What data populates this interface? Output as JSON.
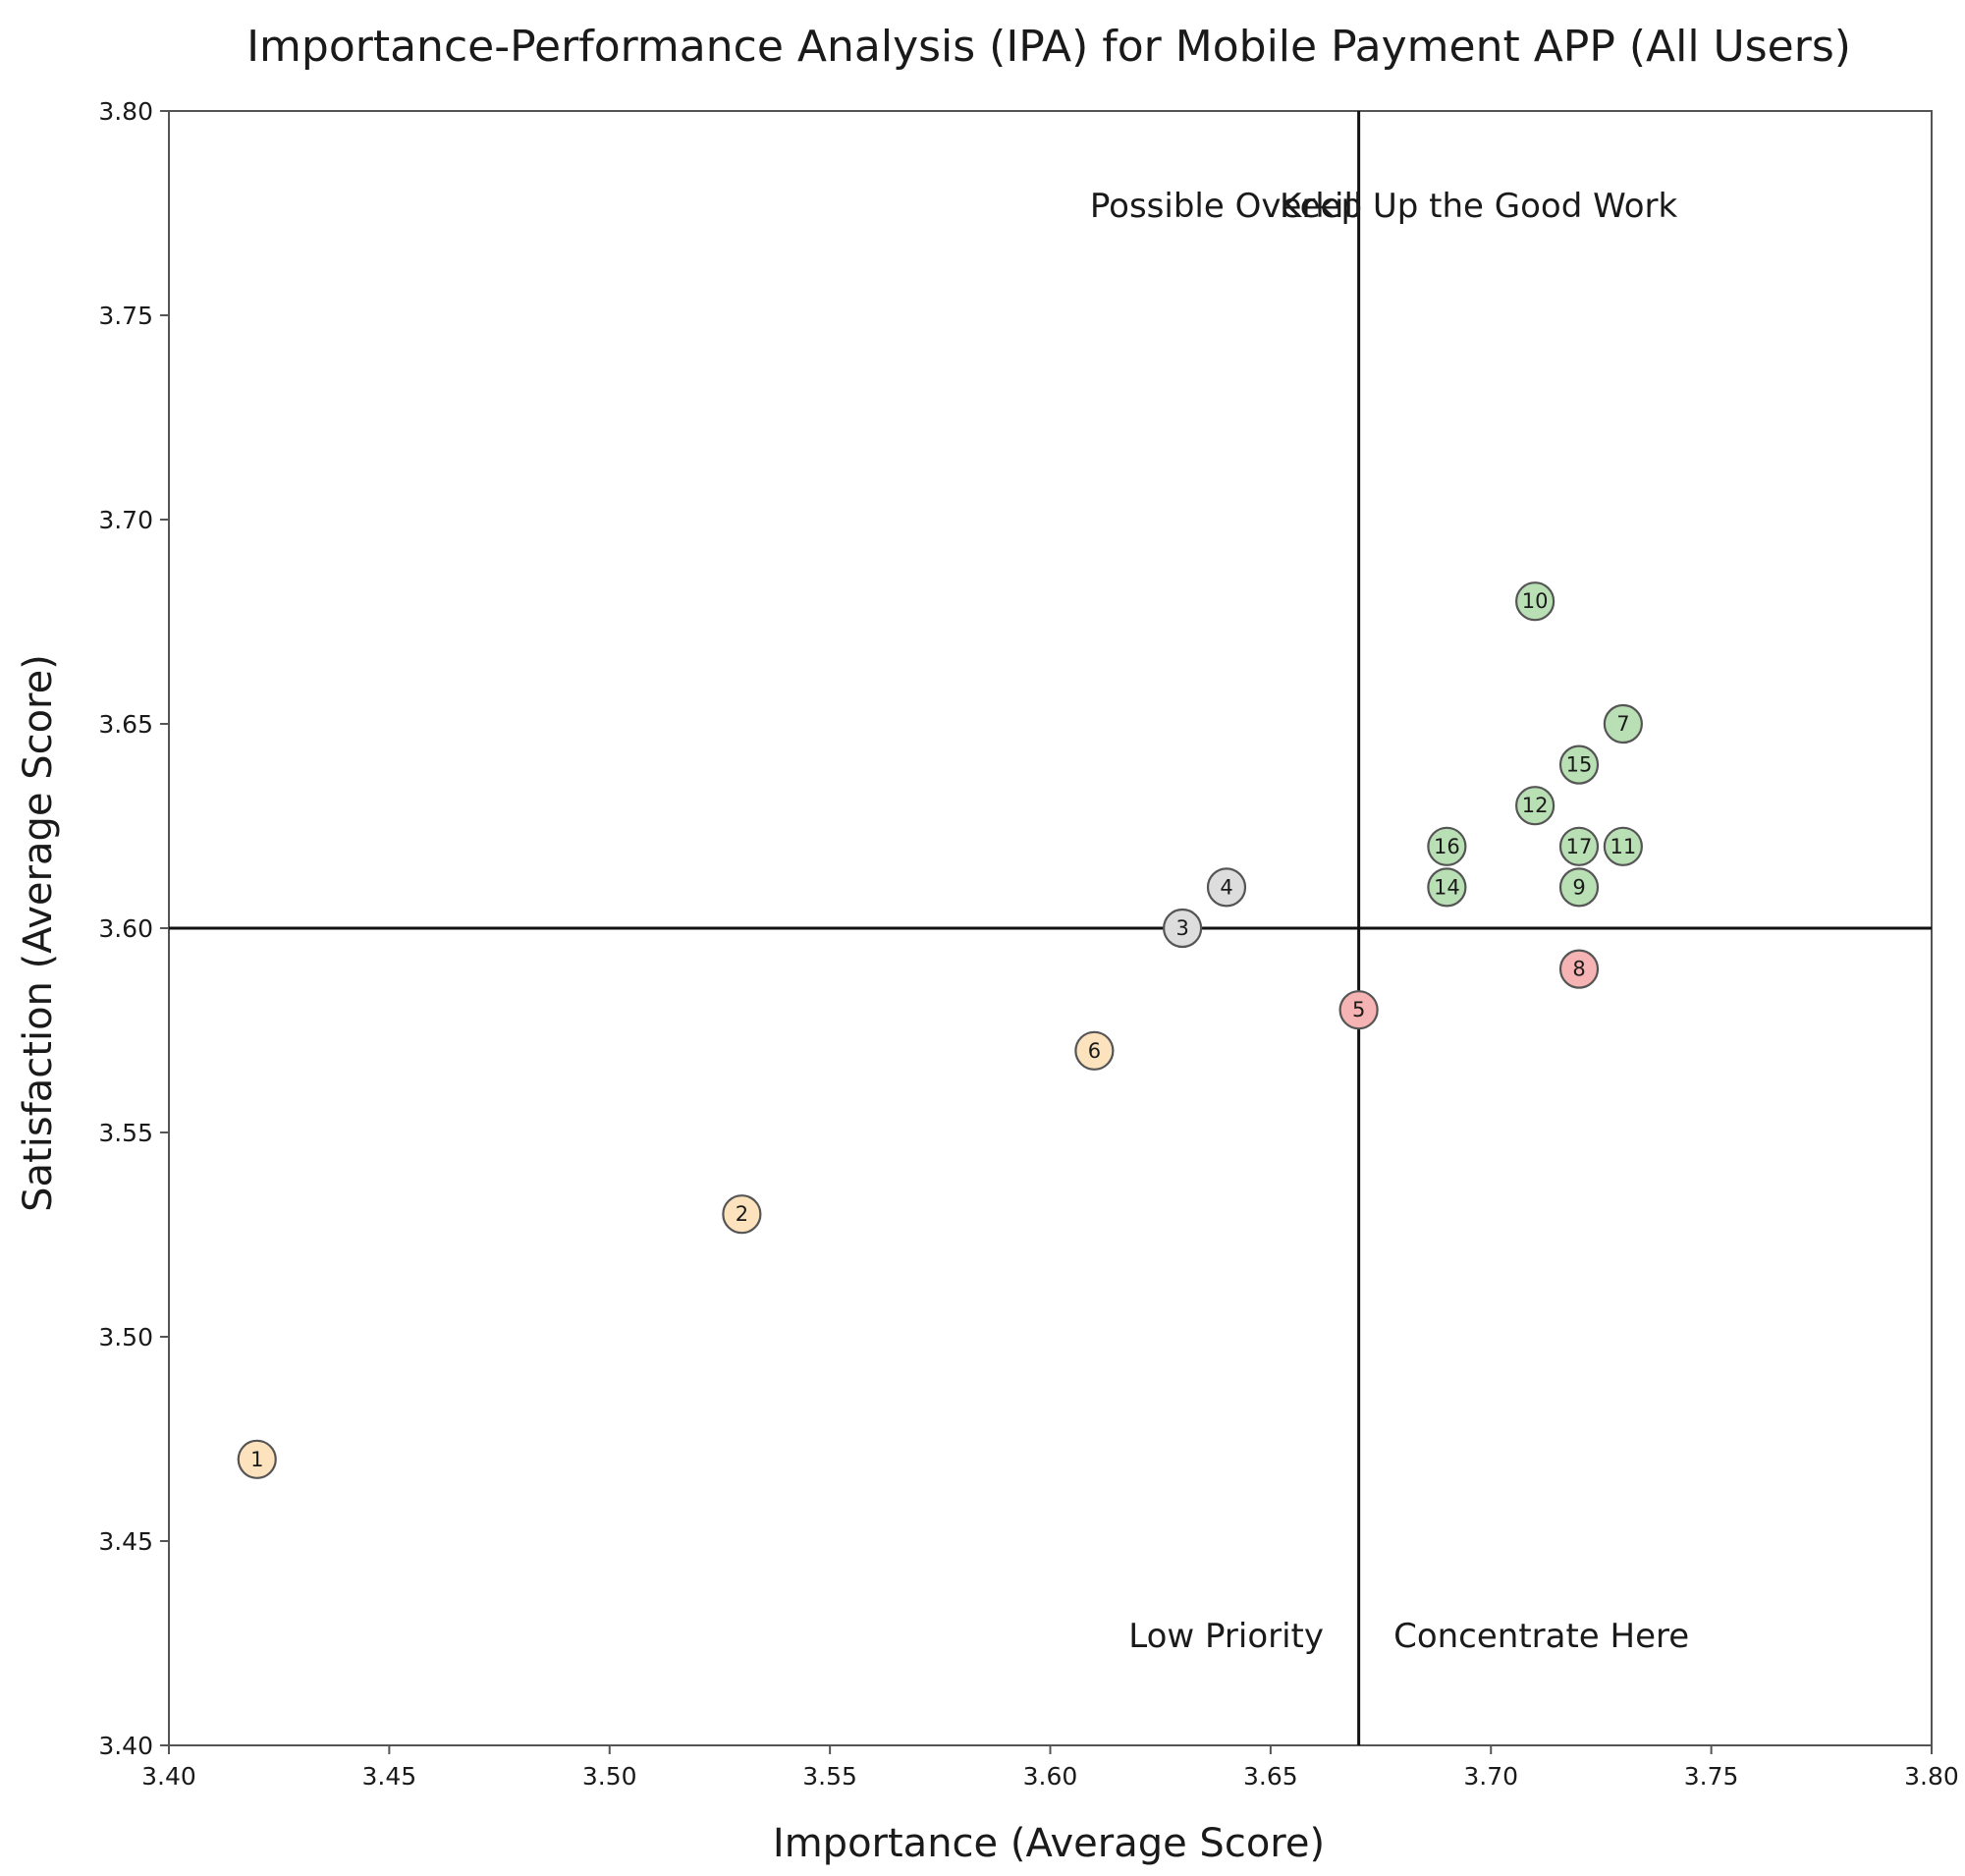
{
  "chart_data": {
    "type": "scatter",
    "title": "Importance-Performance Analysis (IPA) for Mobile Payment APP (All Users)",
    "xlabel": "Importance (Average Score)",
    "ylabel": "Satisfaction (Average Score)",
    "xlim": [
      3.4,
      3.8
    ],
    "ylim": [
      3.4,
      3.8
    ],
    "xticks": [
      "3.40",
      "3.45",
      "3.50",
      "3.55",
      "3.60",
      "3.65",
      "3.70",
      "3.75",
      "3.80"
    ],
    "yticks": [
      "3.40",
      "3.45",
      "3.50",
      "3.55",
      "3.60",
      "3.65",
      "3.70",
      "3.75",
      "3.80"
    ],
    "x_divider": 3.67,
    "y_divider": 3.6,
    "quadrant_labels": {
      "top_left": "Possible Overkill",
      "top_right": "Keep Up the Good Work",
      "bottom_left": "Low Priority",
      "bottom_right": "Concentrate Here"
    },
    "colors": {
      "keep": "#b9dfb4",
      "overkill": "#dddddd",
      "low": "#fde3bd",
      "concentrate": "#f6b3b3",
      "edge": "#555555",
      "axis": "#111111"
    },
    "points": [
      {
        "label": "1",
        "x": 3.42,
        "y": 3.47,
        "category": "low"
      },
      {
        "label": "2",
        "x": 3.53,
        "y": 3.53,
        "category": "low"
      },
      {
        "label": "3",
        "x": 3.63,
        "y": 3.6,
        "category": "overkill"
      },
      {
        "label": "4",
        "x": 3.64,
        "y": 3.61,
        "category": "overkill"
      },
      {
        "label": "5",
        "x": 3.67,
        "y": 3.58,
        "category": "concentrate"
      },
      {
        "label": "6",
        "x": 3.61,
        "y": 3.57,
        "category": "low"
      },
      {
        "label": "7",
        "x": 3.73,
        "y": 3.65,
        "category": "keep"
      },
      {
        "label": "8",
        "x": 3.72,
        "y": 3.59,
        "category": "concentrate"
      },
      {
        "label": "9",
        "x": 3.72,
        "y": 3.61,
        "category": "keep"
      },
      {
        "label": "10",
        "x": 3.71,
        "y": 3.68,
        "category": "keep"
      },
      {
        "label": "11",
        "x": 3.73,
        "y": 3.62,
        "category": "keep"
      },
      {
        "label": "12",
        "x": 3.71,
        "y": 3.63,
        "category": "keep"
      },
      {
        "label": "14",
        "x": 3.69,
        "y": 3.61,
        "category": "keep"
      },
      {
        "label": "15",
        "x": 3.72,
        "y": 3.64,
        "category": "keep"
      },
      {
        "label": "16",
        "x": 3.69,
        "y": 3.62,
        "category": "keep"
      },
      {
        "label": "17",
        "x": 3.72,
        "y": 3.62,
        "category": "keep"
      }
    ]
  }
}
